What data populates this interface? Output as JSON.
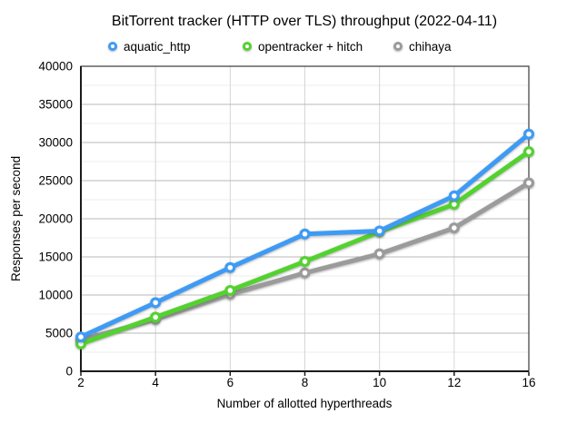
{
  "chart_data": {
    "type": "line",
    "title": "BitTorrent tracker (HTTP over TLS) throughput (2022-04-11)",
    "xlabel": "Number of allotted hyperthreads",
    "ylabel": "Responses per second",
    "categories": [
      "2",
      "4",
      "6",
      "8",
      "10",
      "12",
      "16"
    ],
    "ylim": [
      0,
      40000
    ],
    "y_major_step": 5000,
    "y_minor_step": 2500,
    "grid": true,
    "legend_position": "top",
    "marker_style": "open-circle",
    "series": [
      {
        "name": "aquatic_http",
        "color": "#3E9BF5",
        "values": [
          4500,
          9000,
          13600,
          18000,
          18400,
          23000,
          31100
        ]
      },
      {
        "name": "opentracker + hitch",
        "color": "#53D22F",
        "values": [
          3600,
          7100,
          10600,
          14400,
          18300,
          21900,
          28800
        ]
      },
      {
        "name": "chihaya",
        "color": "#9B9B9B",
        "values": [
          4100,
          6800,
          10100,
          12900,
          15400,
          18800,
          24700
        ]
      }
    ]
  }
}
